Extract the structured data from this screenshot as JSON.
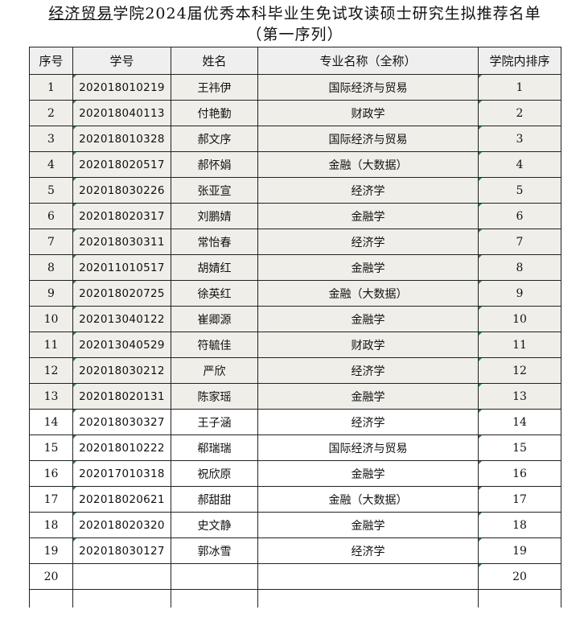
{
  "header": {
    "title_underlined": "经济贸易",
    "title_rest": "学院2024届优秀本科毕业生免试攻读硕士研究生拟推荐名单",
    "subtitle": "（第一序列）"
  },
  "table": {
    "columns": [
      "序号",
      "学号",
      "姓名",
      "专业名称（全称）",
      "学院内排序"
    ],
    "rows": [
      {
        "no": 1,
        "id": "202018010219",
        "name": "王祎伊",
        "major": "国际经济与贸易",
        "rank": 1
      },
      {
        "no": 2,
        "id": "202018040113",
        "name": "付艳勤",
        "major": "财政学",
        "rank": 2
      },
      {
        "no": 3,
        "id": "202018010328",
        "name": "郝文序",
        "major": "国际经济与贸易",
        "rank": 3
      },
      {
        "no": 4,
        "id": "202018020517",
        "name": "郝怀娟",
        "major": "金融（大数据）",
        "rank": 4
      },
      {
        "no": 5,
        "id": "202018030226",
        "name": "张亚宣",
        "major": "经济学",
        "rank": 5
      },
      {
        "no": 6,
        "id": "202018020317",
        "name": "刘鹏婧",
        "major": "金融学",
        "rank": 6
      },
      {
        "no": 7,
        "id": "202018030311",
        "name": "常怡春",
        "major": "经济学",
        "rank": 7
      },
      {
        "no": 8,
        "id": "202011010517",
        "name": "胡婧红",
        "major": "金融学",
        "rank": 8
      },
      {
        "no": 9,
        "id": "202018020725",
        "name": "徐英红",
        "major": "金融（大数据）",
        "rank": 9
      },
      {
        "no": 10,
        "id": "202013040122",
        "name": "崔卿源",
        "major": "金融学",
        "rank": 10
      },
      {
        "no": 11,
        "id": "202013040529",
        "name": "符毓佳",
        "major": "财政学",
        "rank": 11
      },
      {
        "no": 12,
        "id": "202018030212",
        "name": "严欣",
        "major": "经济学",
        "rank": 12
      },
      {
        "no": 13,
        "id": "202018020131",
        "name": "陈家瑶",
        "major": "金融学",
        "rank": 13
      },
      {
        "no": 14,
        "id": "202018030327",
        "name": "王子涵",
        "major": "经济学",
        "rank": 14
      },
      {
        "no": 15,
        "id": "202018010222",
        "name": "郗瑞瑞",
        "major": "国际经济与贸易",
        "rank": 15
      },
      {
        "no": 16,
        "id": "202017010318",
        "name": "祝欣原",
        "major": "金融学",
        "rank": 16
      },
      {
        "no": 17,
        "id": "202018020621",
        "name": "郝甜甜",
        "major": "金融（大数据）",
        "rank": 17
      },
      {
        "no": 18,
        "id": "202018020320",
        "name": "史文静",
        "major": "金融学",
        "rank": 18
      },
      {
        "no": 19,
        "id": "202018030127",
        "name": "郭冰雪",
        "major": "经济学",
        "rank": 19
      },
      {
        "no": 20,
        "rank": 20
      }
    ]
  }
}
